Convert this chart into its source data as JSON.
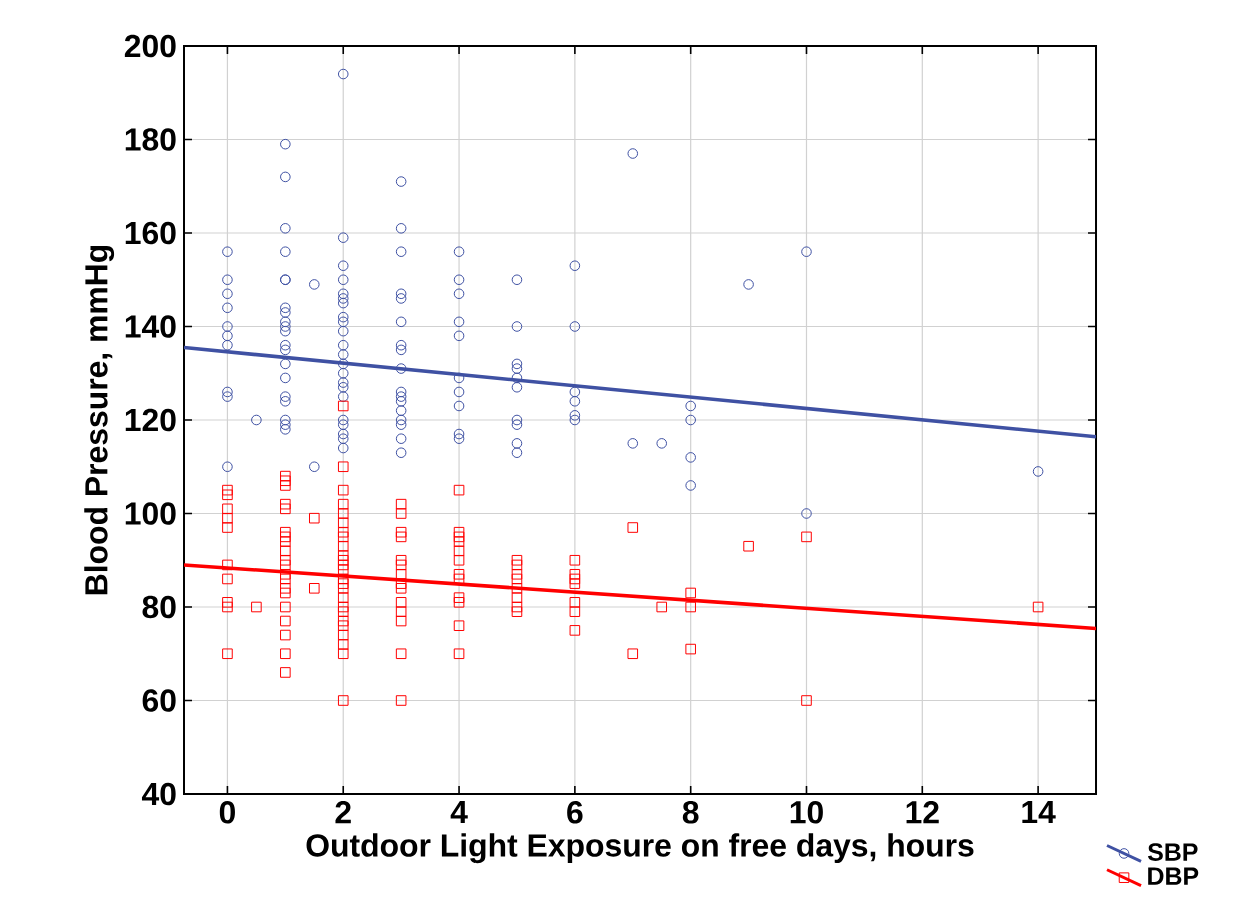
{
  "chart_data": {
    "type": "scatter",
    "xlabel": "Outdoor Light Exposure on free days, hours",
    "ylabel": "Blood Pressure, mmHg",
    "xlim": [
      -0.75,
      15
    ],
    "ylim": [
      40,
      200
    ],
    "xticks": [
      0,
      2,
      4,
      6,
      8,
      10,
      12,
      14
    ],
    "yticks": [
      40,
      60,
      80,
      100,
      120,
      140,
      160,
      180,
      200
    ],
    "grid": true,
    "legend": "bottom right",
    "series": [
      {
        "name": "SBP",
        "marker": "circle",
        "color": "#3f51a3",
        "x": [
          0,
          0,
          0,
          0,
          0,
          0,
          0,
          0,
          0,
          0,
          0.5,
          1,
          1,
          1,
          1,
          1,
          1,
          1,
          1,
          1,
          1,
          1,
          1,
          1,
          1,
          1,
          1,
          1,
          1,
          1,
          1,
          1.5,
          1.5,
          2,
          2,
          2,
          2,
          2,
          2,
          2,
          2,
          2,
          2,
          2,
          2,
          2,
          2,
          2,
          2,
          2,
          2,
          2,
          2,
          2,
          2,
          3,
          3,
          3,
          3,
          3,
          3,
          3,
          3,
          3,
          3,
          3,
          3,
          3,
          3,
          3,
          3,
          3,
          4,
          4,
          4,
          4,
          4,
          4,
          4,
          4,
          4,
          4,
          5,
          5,
          5,
          5,
          5,
          5,
          5,
          5,
          5,
          5,
          6,
          6,
          6,
          6,
          6,
          6,
          7,
          7,
          7.5,
          8,
          8,
          8,
          8,
          9,
          10,
          10,
          14
        ],
        "values": [
          156,
          150,
          147,
          144,
          140,
          138,
          136,
          126,
          125,
          110,
          120,
          179,
          172,
          161,
          156,
          150,
          150,
          144,
          143,
          141,
          140,
          139,
          136,
          135,
          132,
          129,
          125,
          124,
          120,
          119,
          118,
          149,
          110,
          194,
          159,
          153,
          150,
          147,
          146,
          145,
          142,
          141,
          139,
          136,
          134,
          132,
          130,
          128,
          127,
          125,
          120,
          119,
          117,
          116,
          114,
          171,
          161,
          156,
          147,
          146,
          141,
          136,
          135,
          131,
          126,
          125,
          124,
          122,
          120,
          119,
          116,
          113,
          156,
          150,
          147,
          141,
          138,
          129,
          126,
          123,
          117,
          116,
          150,
          140,
          132,
          131,
          129,
          127,
          120,
          119,
          115,
          113,
          153,
          140,
          126,
          124,
          121,
          120,
          177,
          115,
          115,
          123,
          120,
          112,
          106,
          149,
          156,
          100,
          109
        ]
      },
      {
        "name": "DBP",
        "marker": "square",
        "color": "#ff0000",
        "x": [
          0,
          0,
          0,
          0,
          0,
          0,
          0,
          0,
          0,
          0,
          0.5,
          1,
          1,
          1,
          1,
          1,
          1,
          1,
          1,
          1,
          1,
          1,
          1,
          1,
          1,
          1,
          1,
          1,
          1,
          1,
          1,
          1.5,
          1.5,
          2,
          2,
          2,
          2,
          2,
          2,
          2,
          2,
          2,
          2,
          2,
          2,
          2,
          2,
          2,
          2,
          2,
          2,
          2,
          2,
          2,
          2,
          2,
          2,
          2,
          3,
          3,
          3,
          3,
          3,
          3,
          3,
          3,
          3,
          3,
          3,
          3,
          3,
          3,
          4,
          4,
          4,
          4,
          4,
          4,
          4,
          4,
          4,
          4,
          4,
          4,
          5,
          5,
          5,
          5,
          5,
          5,
          5,
          5,
          6,
          6,
          6,
          6,
          6,
          6,
          6,
          7,
          7,
          7.5,
          8,
          8,
          8,
          9,
          10,
          10,
          14
        ],
        "values": [
          105,
          104,
          101,
          99,
          97,
          89,
          86,
          81,
          80,
          70,
          80,
          108,
          107,
          106,
          102,
          101,
          96,
          95,
          94,
          92,
          90,
          89,
          87,
          86,
          84,
          83,
          80,
          77,
          74,
          70,
          66,
          99,
          84,
          123,
          110,
          105,
          102,
          100,
          98,
          96,
          95,
          93,
          91,
          90,
          89,
          88,
          86,
          85,
          84,
          82,
          80,
          79,
          77,
          76,
          74,
          72,
          70,
          60,
          102,
          100,
          96,
          95,
          90,
          89,
          87,
          85,
          84,
          81,
          79,
          77,
          70,
          60,
          105,
          96,
          95,
          94,
          92,
          90,
          87,
          86,
          82,
          81,
          76,
          70,
          90,
          89,
          87,
          86,
          84,
          82,
          80,
          79,
          90,
          87,
          86,
          85,
          81,
          79,
          75,
          97,
          70,
          80,
          83,
          80,
          71,
          93,
          95,
          60,
          80
        ]
      },
      {
        "type": "line",
        "color": "#3f51a3",
        "x": [
          -0.75,
          15
        ],
        "values": [
          135.5,
          116.4
        ]
      },
      {
        "type": "line",
        "color": "#ff0000",
        "x": [
          -0.75,
          15
        ],
        "values": [
          89,
          75.4
        ]
      }
    ]
  }
}
